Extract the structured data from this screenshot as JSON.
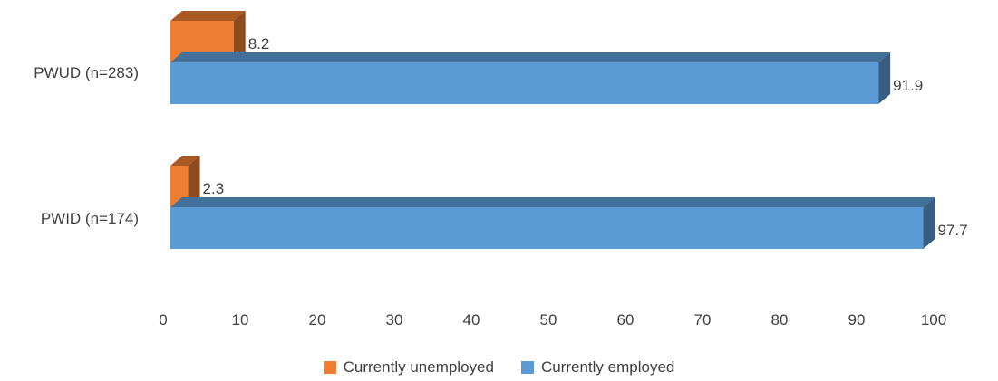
{
  "chart_data": {
    "type": "bar",
    "orientation": "horizontal",
    "style": "3d",
    "categories": [
      "PWUD (n=283)",
      "PWID (n=174)"
    ],
    "series": [
      {
        "name": "Currently unemployed",
        "values": [
          8.2,
          2.3
        ],
        "color": "#ED7D31"
      },
      {
        "name": "Currently employed",
        "values": [
          91.9,
          97.7
        ],
        "color": "#5B9BD5"
      }
    ],
    "xlim": [
      0,
      100
    ],
    "xticks": [
      "0",
      "10",
      "20",
      "30",
      "40",
      "50",
      "60",
      "70",
      "80",
      "90",
      "100"
    ],
    "grid": false,
    "legend_position": "bottom"
  }
}
